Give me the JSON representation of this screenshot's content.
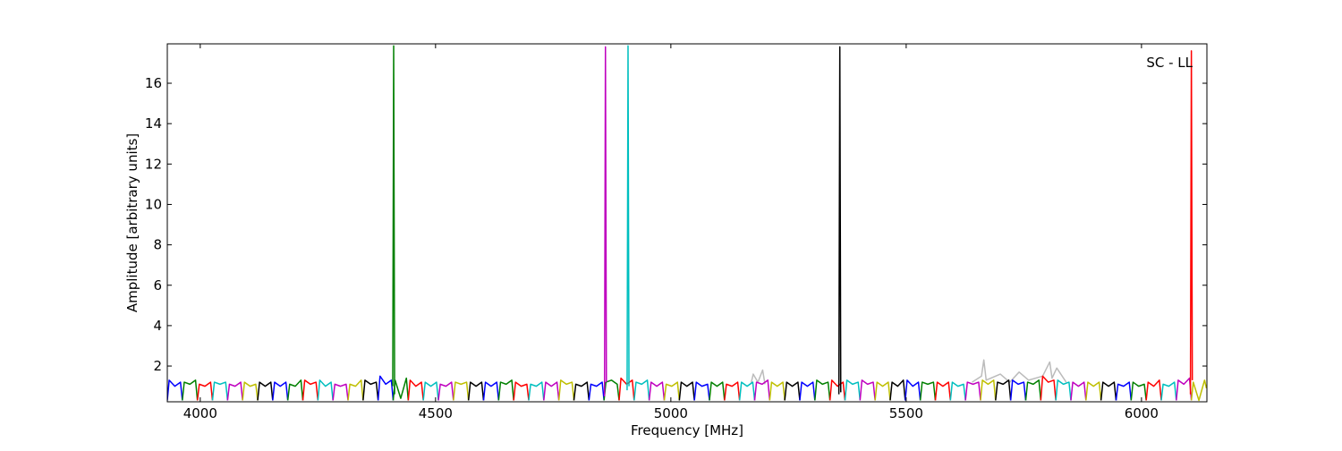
{
  "chart_data": {
    "type": "line",
    "xlabel": "Frequency [MHz]",
    "ylabel": "Amplitude [arbitrary units]",
    "annotation": "SC - LL",
    "xlim": [
      3930,
      6139
    ],
    "ylim": [
      0.23,
      17.95
    ],
    "xticks": [
      4000,
      4500,
      5000,
      5500,
      6000
    ],
    "yticks": [
      2,
      4,
      6,
      8,
      10,
      12,
      14,
      16
    ],
    "series": [
      {
        "color": "#bbbbbb",
        "x": [
          5170,
          5175,
          5185,
          5195,
          5200
        ],
        "values": [
          1.1,
          1.6,
          1.2,
          1.8,
          1.1
        ]
      },
      {
        "color": "#bbbbbb",
        "x": [
          5640,
          5660,
          5665,
          5670,
          5700,
          5720,
          5740,
          5760,
          5790,
          5805,
          5810,
          5820,
          5840
        ],
        "values": [
          1.2,
          1.5,
          2.3,
          1.3,
          1.6,
          1.2,
          1.7,
          1.3,
          1.5,
          2.2,
          1.4,
          1.9,
          1.2
        ]
      },
      {
        "color": "#0000ff",
        "x": [
          3930,
          3934,
          3946,
          3958,
          3962
        ],
        "values": [
          0.3,
          1.3,
          1.0,
          1.2,
          0.3
        ]
      },
      {
        "color": "#008000",
        "x": [
          3962,
          3966,
          3978,
          3990,
          3994
        ],
        "values": [
          0.3,
          1.2,
          1.1,
          1.3,
          0.3
        ]
      },
      {
        "color": "#ff0000",
        "x": [
          3994,
          3998,
          4010,
          4022,
          4026
        ],
        "values": [
          0.3,
          1.1,
          1.0,
          1.2,
          0.3
        ]
      },
      {
        "color": "#00bfbf",
        "x": [
          4026,
          4030,
          4042,
          4054,
          4058
        ],
        "values": [
          0.3,
          1.2,
          1.1,
          1.2,
          0.3
        ]
      },
      {
        "color": "#bf00bf",
        "x": [
          4058,
          4062,
          4074,
          4086,
          4090
        ],
        "values": [
          0.3,
          1.1,
          1.0,
          1.2,
          0.3
        ]
      },
      {
        "color": "#bfbf00",
        "x": [
          4090,
          4094,
          4106,
          4118,
          4122
        ],
        "values": [
          0.3,
          1.2,
          1.0,
          1.1,
          0.3
        ]
      },
      {
        "color": "#000000",
        "x": [
          4122,
          4126,
          4138,
          4150,
          4154
        ],
        "values": [
          0.3,
          1.2,
          1.0,
          1.2,
          0.3
        ]
      },
      {
        "color": "#0000ff",
        "x": [
          4154,
          4158,
          4170,
          4182,
          4186
        ],
        "values": [
          0.3,
          1.2,
          1.0,
          1.2,
          0.3
        ]
      },
      {
        "color": "#008000",
        "x": [
          4186,
          4190,
          4202,
          4214,
          4218
        ],
        "values": [
          0.3,
          1.1,
          1.0,
          1.3,
          0.3
        ]
      },
      {
        "color": "#ff0000",
        "x": [
          4218,
          4222,
          4234,
          4246,
          4250
        ],
        "values": [
          0.3,
          1.3,
          1.1,
          1.2,
          0.3
        ]
      },
      {
        "color": "#00bfbf",
        "x": [
          4250,
          4254,
          4266,
          4278,
          4282
        ],
        "values": [
          0.3,
          1.3,
          1.0,
          1.2,
          0.3
        ]
      },
      {
        "color": "#bf00bf",
        "x": [
          4282,
          4286,
          4298,
          4310,
          4314
        ],
        "values": [
          0.3,
          1.1,
          1.0,
          1.1,
          0.3
        ]
      },
      {
        "color": "#bfbf00",
        "x": [
          4314,
          4318,
          4330,
          4342,
          4346
        ],
        "values": [
          0.3,
          1.1,
          1.0,
          1.3,
          0.3
        ]
      },
      {
        "color": "#000000",
        "x": [
          4346,
          4350,
          4362,
          4374,
          4378
        ],
        "values": [
          0.3,
          1.3,
          1.1,
          1.2,
          0.3
        ]
      },
      {
        "color": "#0000ff",
        "x": [
          4378,
          4382,
          4394,
          4406,
          4410
        ],
        "values": [
          0.3,
          1.5,
          1.1,
          1.3,
          0.3
        ]
      },
      {
        "color": "#008000",
        "x": [
          4410,
          4414,
          4426,
          4438,
          4442
        ],
        "values": [
          0.3,
          1.3,
          0.4,
          1.4,
          0.3
        ]
      },
      {
        "color": "#ff0000",
        "x": [
          4442,
          4446,
          4458,
          4470,
          4474
        ],
        "values": [
          0.3,
          1.3,
          1.0,
          1.2,
          0.3
        ]
      },
      {
        "color": "#00bfbf",
        "x": [
          4474,
          4478,
          4490,
          4502,
          4506
        ],
        "values": [
          0.3,
          1.2,
          1.0,
          1.2,
          0.3
        ]
      },
      {
        "color": "#bf00bf",
        "x": [
          4506,
          4510,
          4522,
          4534,
          4538
        ],
        "values": [
          0.3,
          1.1,
          1.0,
          1.2,
          0.3
        ]
      },
      {
        "color": "#bfbf00",
        "x": [
          4538,
          4542,
          4554,
          4566,
          4570
        ],
        "values": [
          0.3,
          1.2,
          1.1,
          1.2,
          0.3
        ]
      },
      {
        "color": "#000000",
        "x": [
          4570,
          4574,
          4586,
          4598,
          4602
        ],
        "values": [
          0.3,
          1.2,
          1.0,
          1.2,
          0.3
        ]
      },
      {
        "color": "#0000ff",
        "x": [
          4602,
          4606,
          4618,
          4630,
          4634
        ],
        "values": [
          0.3,
          1.2,
          1.0,
          1.2,
          0.3
        ]
      },
      {
        "color": "#008000",
        "x": [
          4634,
          4638,
          4650,
          4662,
          4666
        ],
        "values": [
          0.3,
          1.2,
          1.1,
          1.3,
          0.3
        ]
      },
      {
        "color": "#ff0000",
        "x": [
          4666,
          4670,
          4682,
          4694,
          4698
        ],
        "values": [
          0.3,
          1.2,
          1.0,
          1.1,
          0.3
        ]
      },
      {
        "color": "#00bfbf",
        "x": [
          4698,
          4702,
          4714,
          4726,
          4730
        ],
        "values": [
          0.3,
          1.1,
          1.0,
          1.2,
          0.3
        ]
      },
      {
        "color": "#bf00bf",
        "x": [
          4730,
          4734,
          4746,
          4758,
          4762
        ],
        "values": [
          0.3,
          1.2,
          1.0,
          1.2,
          0.3
        ]
      },
      {
        "color": "#bfbf00",
        "x": [
          4762,
          4766,
          4778,
          4790,
          4794
        ],
        "values": [
          0.3,
          1.3,
          1.1,
          1.2,
          0.3
        ]
      },
      {
        "color": "#000000",
        "x": [
          4794,
          4798,
          4810,
          4822,
          4826
        ],
        "values": [
          0.3,
          1.1,
          1.0,
          1.2,
          0.3
        ]
      },
      {
        "color": "#0000ff",
        "x": [
          4826,
          4830,
          4842,
          4854,
          4858
        ],
        "values": [
          0.3,
          1.1,
          1.0,
          1.2,
          0.3
        ]
      },
      {
        "color": "#008000",
        "x": [
          4858,
          4862,
          4874,
          4886,
          4890
        ],
        "values": [
          0.3,
          1.2,
          1.3,
          1.1,
          0.3
        ]
      },
      {
        "color": "#ff0000",
        "x": [
          4890,
          4894,
          4906,
          4918,
          4922
        ],
        "values": [
          0.3,
          1.4,
          1.1,
          1.3,
          0.3
        ]
      },
      {
        "color": "#00bfbf",
        "x": [
          4922,
          4926,
          4938,
          4950,
          4954
        ],
        "values": [
          0.3,
          1.2,
          1.1,
          1.3,
          0.3
        ]
      },
      {
        "color": "#bf00bf",
        "x": [
          4954,
          4958,
          4970,
          4982,
          4986
        ],
        "values": [
          0.3,
          1.2,
          1.0,
          1.2,
          0.3
        ]
      },
      {
        "color": "#bfbf00",
        "x": [
          4986,
          4990,
          5002,
          5014,
          5018
        ],
        "values": [
          0.3,
          1.1,
          1.0,
          1.2,
          0.3
        ]
      },
      {
        "color": "#000000",
        "x": [
          5018,
          5022,
          5034,
          5046,
          5050
        ],
        "values": [
          0.3,
          1.2,
          1.0,
          1.2,
          0.3
        ]
      },
      {
        "color": "#0000ff",
        "x": [
          5050,
          5054,
          5066,
          5078,
          5082
        ],
        "values": [
          0.3,
          1.2,
          1.0,
          1.1,
          0.3
        ]
      },
      {
        "color": "#008000",
        "x": [
          5082,
          5086,
          5098,
          5110,
          5114
        ],
        "values": [
          0.3,
          1.2,
          1.0,
          1.2,
          0.3
        ]
      },
      {
        "color": "#ff0000",
        "x": [
          5114,
          5118,
          5130,
          5142,
          5146
        ],
        "values": [
          0.3,
          1.1,
          1.0,
          1.2,
          0.3
        ]
      },
      {
        "color": "#00bfbf",
        "x": [
          5146,
          5150,
          5162,
          5174,
          5178
        ],
        "values": [
          0.3,
          1.2,
          1.0,
          1.2,
          0.3
        ]
      },
      {
        "color": "#bf00bf",
        "x": [
          5178,
          5182,
          5194,
          5206,
          5210
        ],
        "values": [
          0.3,
          1.2,
          1.1,
          1.3,
          0.3
        ]
      },
      {
        "color": "#bfbf00",
        "x": [
          5210,
          5214,
          5226,
          5238,
          5242
        ],
        "values": [
          0.3,
          1.2,
          1.0,
          1.2,
          0.3
        ]
      },
      {
        "color": "#000000",
        "x": [
          5242,
          5246,
          5258,
          5270,
          5274
        ],
        "values": [
          0.3,
          1.2,
          1.0,
          1.2,
          0.3
        ]
      },
      {
        "color": "#0000ff",
        "x": [
          5274,
          5278,
          5290,
          5302,
          5306
        ],
        "values": [
          0.3,
          1.2,
          1.0,
          1.2,
          0.3
        ]
      },
      {
        "color": "#008000",
        "x": [
          5306,
          5310,
          5322,
          5334,
          5338
        ],
        "values": [
          0.3,
          1.3,
          1.1,
          1.2,
          0.3
        ]
      },
      {
        "color": "#ff0000",
        "x": [
          5338,
          5342,
          5354,
          5366,
          5370
        ],
        "values": [
          0.3,
          1.3,
          1.0,
          1.2,
          0.3
        ]
      },
      {
        "color": "#00bfbf",
        "x": [
          5370,
          5374,
          5386,
          5398,
          5402
        ],
        "values": [
          0.3,
          1.3,
          1.1,
          1.2,
          0.3
        ]
      },
      {
        "color": "#bf00bf",
        "x": [
          5402,
          5406,
          5418,
          5430,
          5434
        ],
        "values": [
          0.3,
          1.3,
          1.1,
          1.2,
          0.3
        ]
      },
      {
        "color": "#bfbf00",
        "x": [
          5434,
          5438,
          5450,
          5462,
          5466
        ],
        "values": [
          0.3,
          1.2,
          1.0,
          1.2,
          0.3
        ]
      },
      {
        "color": "#000000",
        "x": [
          5466,
          5470,
          5482,
          5494,
          5498
        ],
        "values": [
          0.3,
          1.2,
          1.0,
          1.3,
          0.3
        ]
      },
      {
        "color": "#0000ff",
        "x": [
          5498,
          5502,
          5514,
          5526,
          5530
        ],
        "values": [
          0.3,
          1.3,
          1.0,
          1.2,
          0.3
        ]
      },
      {
        "color": "#008000",
        "x": [
          5530,
          5534,
          5546,
          5558,
          5562
        ],
        "values": [
          0.3,
          1.2,
          1.1,
          1.2,
          0.3
        ]
      },
      {
        "color": "#ff0000",
        "x": [
          5562,
          5566,
          5578,
          5590,
          5594
        ],
        "values": [
          0.3,
          1.2,
          1.0,
          1.2,
          0.3
        ]
      },
      {
        "color": "#00bfbf",
        "x": [
          5594,
          5598,
          5610,
          5622,
          5626
        ],
        "values": [
          0.3,
          1.2,
          1.0,
          1.1,
          0.3
        ]
      },
      {
        "color": "#bf00bf",
        "x": [
          5626,
          5630,
          5642,
          5654,
          5658
        ],
        "values": [
          0.3,
          1.2,
          1.1,
          1.2,
          0.3
        ]
      },
      {
        "color": "#bfbf00",
        "x": [
          5658,
          5662,
          5674,
          5686,
          5690
        ],
        "values": [
          0.3,
          1.3,
          1.1,
          1.3,
          0.3
        ]
      },
      {
        "color": "#000000",
        "x": [
          5690,
          5694,
          5706,
          5718,
          5722
        ],
        "values": [
          0.3,
          1.2,
          1.1,
          1.3,
          0.3
        ]
      },
      {
        "color": "#0000ff",
        "x": [
          5722,
          5726,
          5738,
          5750,
          5754
        ],
        "values": [
          0.3,
          1.3,
          1.1,
          1.2,
          0.3
        ]
      },
      {
        "color": "#008000",
        "x": [
          5754,
          5758,
          5770,
          5782,
          5786
        ],
        "values": [
          0.3,
          1.2,
          1.1,
          1.3,
          0.3
        ]
      },
      {
        "color": "#ff0000",
        "x": [
          5786,
          5790,
          5802,
          5814,
          5818
        ],
        "values": [
          0.3,
          1.5,
          1.2,
          1.3,
          0.3
        ]
      },
      {
        "color": "#00bfbf",
        "x": [
          5818,
          5822,
          5834,
          5846,
          5850
        ],
        "values": [
          0.3,
          1.3,
          1.1,
          1.2,
          0.3
        ]
      },
      {
        "color": "#bf00bf",
        "x": [
          5850,
          5854,
          5866,
          5878,
          5882
        ],
        "values": [
          0.3,
          1.2,
          1.0,
          1.2,
          0.3
        ]
      },
      {
        "color": "#bfbf00",
        "x": [
          5882,
          5886,
          5898,
          5910,
          5914
        ],
        "values": [
          0.3,
          1.2,
          1.0,
          1.2,
          0.3
        ]
      },
      {
        "color": "#000000",
        "x": [
          5914,
          5918,
          5930,
          5942,
          5946
        ],
        "values": [
          0.3,
          1.2,
          1.0,
          1.2,
          0.3
        ]
      },
      {
        "color": "#0000ff",
        "x": [
          5946,
          5950,
          5962,
          5974,
          5978
        ],
        "values": [
          0.3,
          1.1,
          1.0,
          1.2,
          0.3
        ]
      },
      {
        "color": "#008000",
        "x": [
          5978,
          5982,
          5994,
          6006,
          6010
        ],
        "values": [
          0.3,
          1.2,
          1.0,
          1.1,
          0.3
        ]
      },
      {
        "color": "#ff0000",
        "x": [
          6010,
          6014,
          6026,
          6038,
          6042
        ],
        "values": [
          0.3,
          1.2,
          1.0,
          1.3,
          0.3
        ]
      },
      {
        "color": "#00bfbf",
        "x": [
          6042,
          6046,
          6058,
          6070,
          6074
        ],
        "values": [
          0.3,
          1.1,
          1.0,
          1.2,
          0.3
        ]
      },
      {
        "color": "#bf00bf",
        "x": [
          6074,
          6078,
          6090,
          6102,
          6106
        ],
        "values": [
          0.3,
          1.3,
          1.1,
          1.4,
          0.3
        ]
      },
      {
        "color": "#bfbf00",
        "x": [
          6106,
          6110,
          6122,
          6134,
          6138
        ],
        "values": [
          0.3,
          1.2,
          0.3,
          1.3,
          0.9
        ]
      },
      {
        "color": "#008000",
        "x": [
          4409,
          4411,
          4413
        ],
        "values": [
          1.0,
          17.85,
          0.6
        ]
      },
      {
        "color": "#bf00bf",
        "x": [
          4859,
          4861,
          4863
        ],
        "values": [
          0.5,
          17.8,
          1.2
        ]
      },
      {
        "color": "#00bfbf",
        "x": [
          4907,
          4909,
          4911
        ],
        "values": [
          0.8,
          17.85,
          1.0
        ]
      },
      {
        "color": "#000000",
        "x": [
          5357,
          5359,
          5361
        ],
        "values": [
          0.6,
          17.8,
          0.7
        ]
      },
      {
        "color": "#ff0000",
        "x": [
          6104,
          6106,
          6108
        ],
        "values": [
          0.6,
          17.6,
          1.3
        ]
      }
    ]
  }
}
